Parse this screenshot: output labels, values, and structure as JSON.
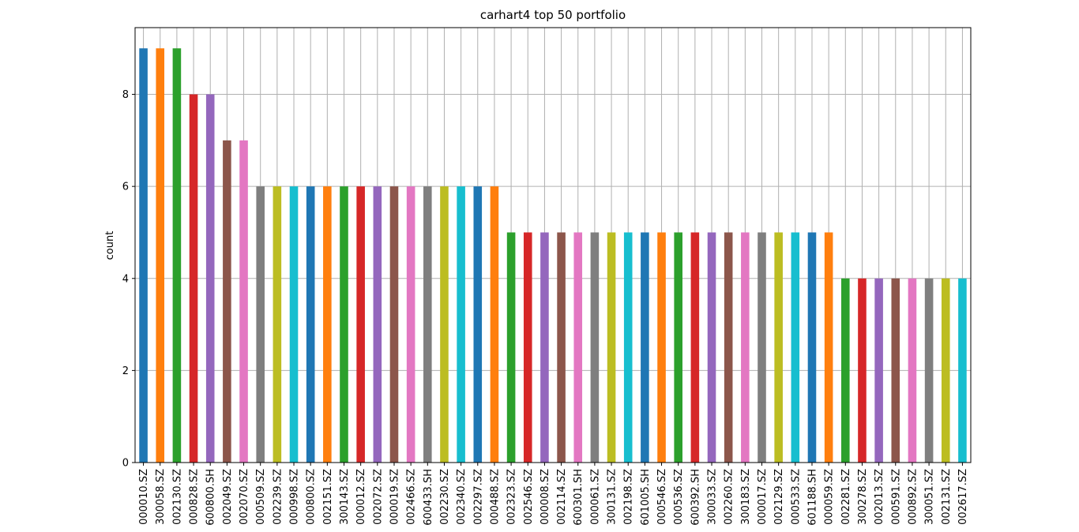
{
  "chart_data": {
    "type": "bar",
    "title": "carhart4 top 50 portfolio",
    "xlabel": "",
    "ylabel": "count",
    "ylim": [
      0,
      9.45
    ],
    "yticks": [
      0,
      2,
      4,
      6,
      8
    ],
    "grid": true,
    "legend": "none",
    "categories": [
      "000010.SZ",
      "300058.SZ",
      "002130.SZ",
      "000828.SZ",
      "600800.SH",
      "002049.SZ",
      "002070.SZ",
      "000509.SZ",
      "002239.SZ",
      "000998.SZ",
      "000800.SZ",
      "002151.SZ",
      "300143.SZ",
      "000012.SZ",
      "002072.SZ",
      "000019.SZ",
      "002466.SZ",
      "600433.SH",
      "002230.SZ",
      "002340.SZ",
      "002297.SZ",
      "000488.SZ",
      "002323.SZ",
      "002546.SZ",
      "000008.SZ",
      "002114.SZ",
      "600301.SH",
      "000061.SZ",
      "300131.SZ",
      "002198.SZ",
      "601005.SH",
      "000546.SZ",
      "000536.SZ",
      "600392.SH",
      "300033.SZ",
      "002260.SZ",
      "300183.SZ",
      "000017.SZ",
      "002129.SZ",
      "000533.SZ",
      "601188.SH",
      "000059.SZ",
      "002281.SZ",
      "300278.SZ",
      "002013.SZ",
      "000591.SZ",
      "000892.SZ",
      "300051.SZ",
      "002131.SZ",
      "002617.SZ"
    ],
    "values": [
      9,
      9,
      9,
      8,
      8,
      7,
      7,
      6,
      6,
      6,
      6,
      6,
      6,
      6,
      6,
      6,
      6,
      6,
      6,
      6,
      6,
      6,
      5,
      5,
      5,
      5,
      5,
      5,
      5,
      5,
      5,
      5,
      5,
      5,
      5,
      5,
      5,
      5,
      5,
      5,
      5,
      5,
      4,
      4,
      4,
      4,
      4,
      4,
      4,
      4
    ],
    "colors": [
      "#1f77b4",
      "#ff7f0e",
      "#2ca02c",
      "#d62728",
      "#9467bd",
      "#8c564b",
      "#e377c2",
      "#7f7f7f",
      "#bcbd22",
      "#17becf"
    ]
  }
}
